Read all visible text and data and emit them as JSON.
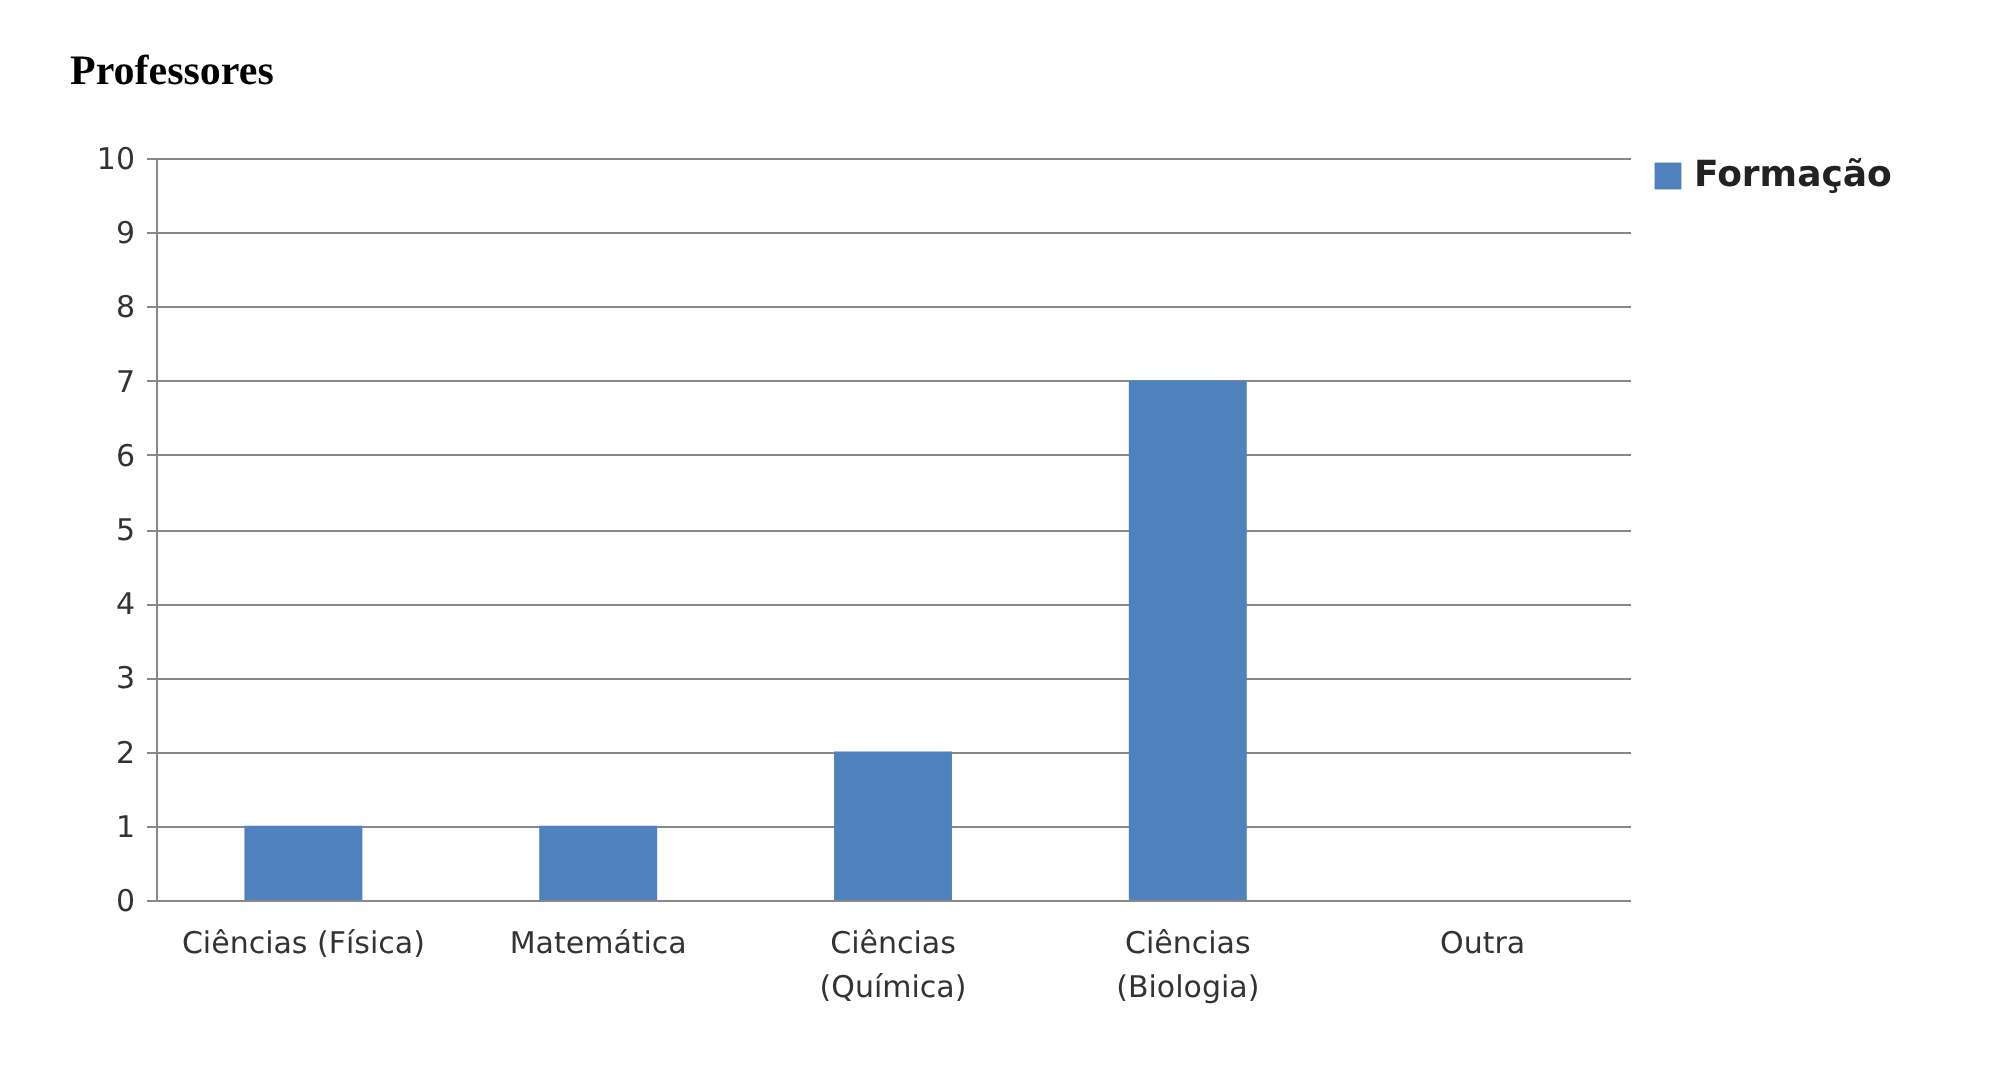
{
  "chart_data": {
    "type": "bar",
    "title": "Professores",
    "categories": [
      "Ciências (Física)",
      "Matemática",
      "Ciências (Química)",
      "Ciências (Biologia)",
      "Outra"
    ],
    "series": [
      {
        "name": "Formação",
        "color": "#4f81bd",
        "values": [
          1,
          1,
          2,
          7,
          0
        ]
      }
    ],
    "ylim": [
      0,
      10
    ],
    "yticks": [
      0,
      1,
      2,
      3,
      4,
      5,
      6,
      7,
      8,
      9,
      10
    ],
    "grid": "y",
    "legend": "right"
  }
}
